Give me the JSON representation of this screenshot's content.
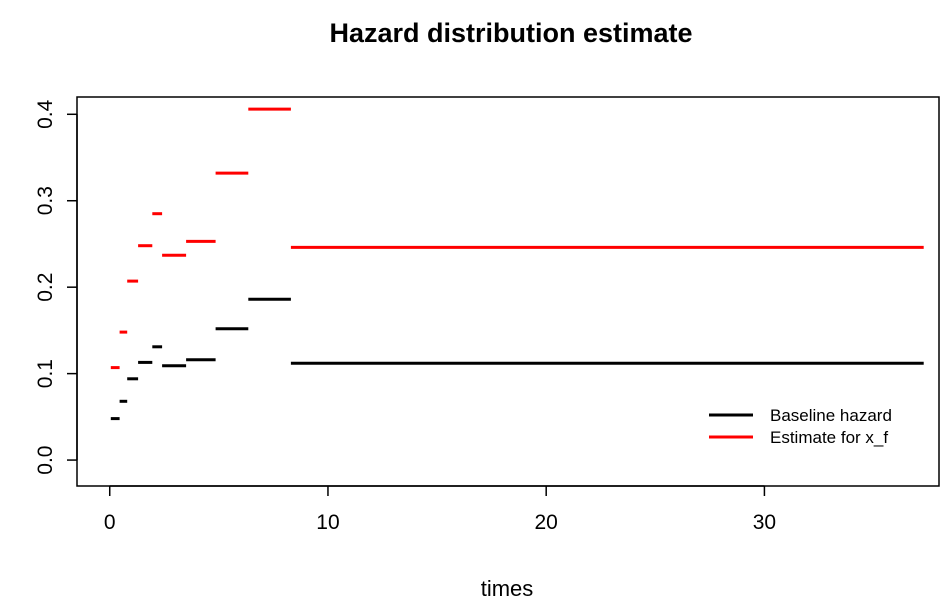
{
  "chart_data": {
    "type": "line",
    "title": "Hazard distribution estimate",
    "xlabel": "times",
    "ylabel": "",
    "xlim": [
      -1.5,
      38
    ],
    "ylim": [
      -0.03,
      0.42
    ],
    "xticks": [
      0,
      10,
      20,
      30
    ],
    "yticks": [
      0.0,
      0.1,
      0.2,
      0.3,
      0.4
    ],
    "xtick_labels": [
      "0",
      "10",
      "20",
      "30"
    ],
    "ytick_labels": [
      "0.0",
      "0.1",
      "0.2",
      "0.3",
      "0.4"
    ],
    "grid": false,
    "legend_position": "bottom-right",
    "series": [
      {
        "name": "Baseline hazard",
        "color": "#000000",
        "segments": [
          {
            "x0": 0.05,
            "x1": 0.45,
            "y": 0.048
          },
          {
            "x0": 0.45,
            "x1": 0.8,
            "y": 0.068
          },
          {
            "x0": 0.8,
            "x1": 1.3,
            "y": 0.094
          },
          {
            "x0": 1.3,
            "x1": 1.95,
            "y": 0.113
          },
          {
            "x0": 1.95,
            "x1": 2.4,
            "y": 0.131
          },
          {
            "x0": 2.4,
            "x1": 3.5,
            "y": 0.109
          },
          {
            "x0": 3.5,
            "x1": 4.85,
            "y": 0.116
          },
          {
            "x0": 4.85,
            "x1": 6.35,
            "y": 0.152
          },
          {
            "x0": 6.35,
            "x1": 8.3,
            "y": 0.186
          },
          {
            "x0": 8.3,
            "x1": 37.3,
            "y": 0.112
          }
        ]
      },
      {
        "name": "Estimate for x_f",
        "color": "#ff0000",
        "segments": [
          {
            "x0": 0.05,
            "x1": 0.45,
            "y": 0.107
          },
          {
            "x0": 0.45,
            "x1": 0.8,
            "y": 0.148
          },
          {
            "x0": 0.8,
            "x1": 1.3,
            "y": 0.207
          },
          {
            "x0": 1.3,
            "x1": 1.95,
            "y": 0.248
          },
          {
            "x0": 1.95,
            "x1": 2.4,
            "y": 0.285
          },
          {
            "x0": 2.4,
            "x1": 3.5,
            "y": 0.237
          },
          {
            "x0": 3.5,
            "x1": 4.85,
            "y": 0.253
          },
          {
            "x0": 4.85,
            "x1": 6.35,
            "y": 0.332
          },
          {
            "x0": 6.35,
            "x1": 8.3,
            "y": 0.406
          },
          {
            "x0": 8.3,
            "x1": 37.3,
            "y": 0.246
          }
        ]
      }
    ]
  }
}
